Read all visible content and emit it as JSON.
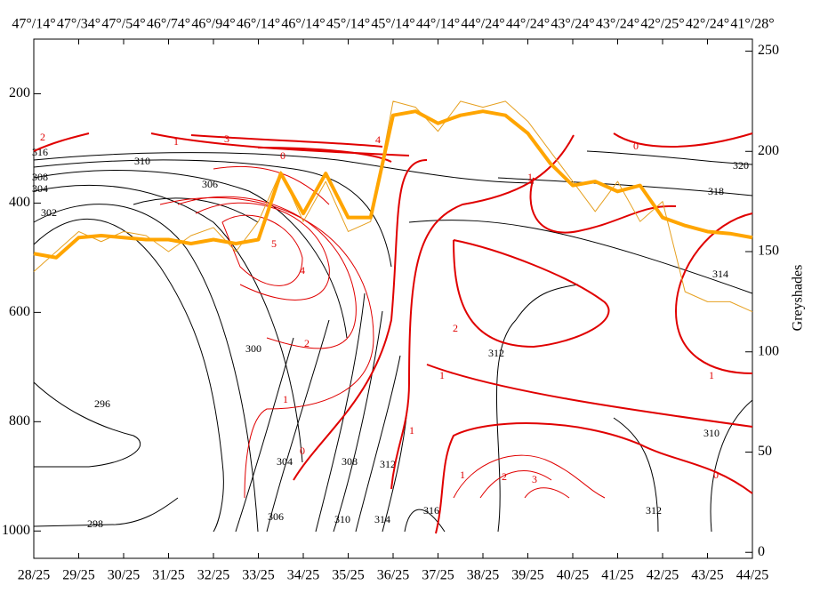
{
  "chart_data": {
    "type": "cross-section",
    "top_labels": [
      "47°/14°",
      "47°/34°",
      "47°/54°",
      "46°/74°",
      "46°/94°",
      "46°/14°",
      "46°/14°",
      "45°/14°",
      "45°/14°",
      "44°/14°",
      "44°/24°",
      "44°/24°",
      "43°/24°",
      "43°/24°",
      "42°/25°",
      "42°/24°",
      "41°/28°"
    ],
    "xlim": [
      0,
      16
    ],
    "xticks": [
      {
        "value": 0,
        "label": "28/25"
      },
      {
        "value": 1,
        "label": "29/25"
      },
      {
        "value": 2,
        "label": "30/25"
      },
      {
        "value": 3,
        "label": "31/25"
      },
      {
        "value": 4,
        "label": "32/25"
      },
      {
        "value": 5,
        "label": "33/25"
      },
      {
        "value": 6,
        "label": "34/25"
      },
      {
        "value": 7,
        "label": "35/25"
      },
      {
        "value": 8,
        "label": "36/25"
      },
      {
        "value": 9,
        "label": "37/25"
      },
      {
        "value": 10,
        "label": "38/25"
      },
      {
        "value": 11,
        "label": "39/25"
      },
      {
        "value": 12,
        "label": "40/25"
      },
      {
        "value": 13,
        "label": "41/25"
      },
      {
        "value": 14,
        "label": "42/25"
      },
      {
        "value": 15,
        "label": "43/25"
      },
      {
        "value": 16,
        "label": "44/25"
      }
    ],
    "ylim": [
      1050,
      100
    ],
    "yticks": [
      200,
      400,
      600,
      800,
      1000
    ],
    "y2lim": [
      -3,
      256
    ],
    "y2ticks": [
      0,
      50,
      100,
      150,
      200,
      250
    ],
    "y2_label": "Greyshades",
    "x": [
      0,
      0.5,
      1,
      1.5,
      2,
      2.5,
      3,
      3.5,
      4,
      4.5,
      5,
      5.5,
      6,
      6.5,
      7,
      7.5,
      8,
      8.5,
      9,
      9.5,
      10,
      10.5,
      11,
      11.5,
      12,
      12.5,
      13,
      13.5,
      14,
      14.5,
      15,
      15.5,
      16
    ],
    "series": [
      {
        "color": "#e6a020",
        "axis": "y2",
        "values": [
          140,
          150,
          160,
          155,
          160,
          158,
          150,
          158,
          162,
          150,
          165,
          190,
          165,
          185,
          160,
          165,
          225,
          222,
          210,
          225,
          222,
          225,
          215,
          200,
          185,
          170,
          185,
          165,
          175,
          130,
          125,
          125,
          120
        ]
      },
      {
        "color": "#ffa500",
        "axis": "y2",
        "values": [
          149,
          147,
          157,
          158,
          157,
          156,
          156,
          154,
          156,
          154,
          156,
          189,
          169,
          189,
          167,
          167,
          218,
          220,
          214,
          218,
          220,
          218,
          209,
          194,
          183,
          185,
          180,
          183,
          167,
          163,
          160,
          159,
          157
        ]
      }
    ],
    "black_contours": [
      316,
      310,
      308,
      304,
      302,
      300,
      296,
      298,
      304,
      306,
      308,
      310,
      312,
      314,
      316,
      312,
      314,
      318,
      320,
      310,
      312,
      306
    ],
    "red_contours": [
      2,
      1,
      3,
      4,
      0,
      5,
      4,
      2,
      1,
      0,
      1,
      2,
      1,
      0,
      1,
      1,
      0,
      1,
      2,
      3
    ]
  }
}
